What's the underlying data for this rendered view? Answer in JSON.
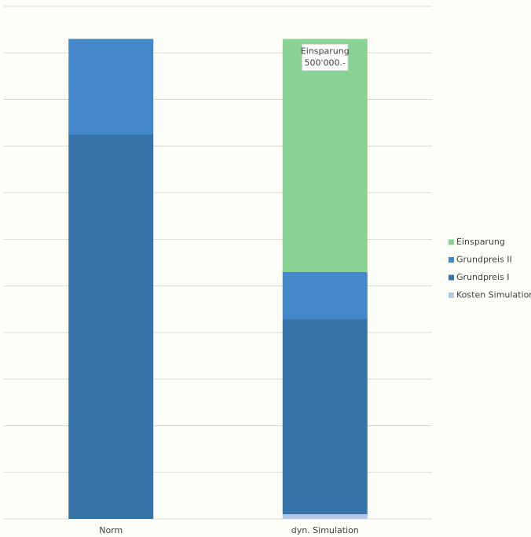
{
  "chart_data": {
    "type": "stacked-bar",
    "categories": [
      "Norm",
      "dyn. Simulation"
    ],
    "series": [
      {
        "name": "Kosten Simulation",
        "color": "#b4c7e7",
        "values": [
          null,
          10000
        ]
      },
      {
        "name": "Grundpreis I",
        "color": "#3674aa",
        "values": [
          825000,
          420000
        ]
      },
      {
        "name": "Grundpreis II",
        "color": "#4389c9",
        "values": [
          205000,
          100000
        ]
      },
      {
        "name": "Einsparung",
        "color": "#88d394",
        "values": [
          null,
          500000
        ],
        "value_labels": [
          null,
          "500'000.-"
        ]
      }
    ],
    "ylim": [
      0,
      1100000
    ],
    "yticks": [
      0,
      100000,
      200000,
      300000,
      400000,
      500000,
      600000,
      700000,
      800000,
      900000,
      1000000,
      1100000
    ],
    "grid": true,
    "legend": "right"
  }
}
